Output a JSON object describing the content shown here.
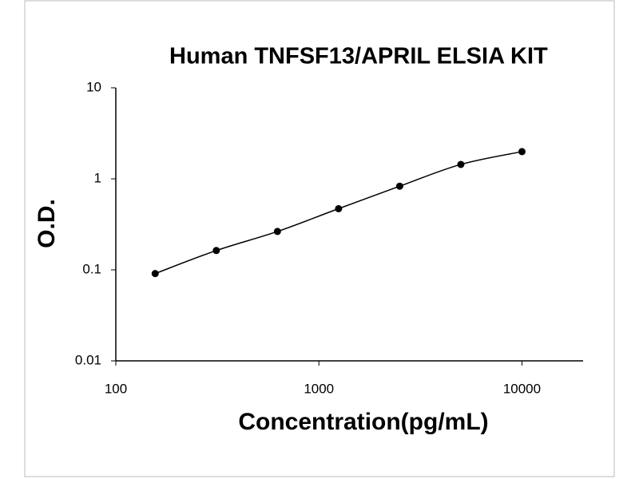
{
  "chart_data": {
    "type": "scatter",
    "title": "Human TNFSF13/APRIL ELSIA KIT",
    "x_label": "Concentration(pg/mL)",
    "y_label": "O.D.",
    "x": [
      156.25,
      312.5,
      625,
      1250,
      2500,
      5000,
      10000
    ],
    "series": [
      {
        "name": "O.D.",
        "color": "#000000",
        "values": [
          0.091,
          0.163,
          0.264,
          0.47,
          0.83,
          1.44,
          1.99
        ]
      }
    ],
    "xscale": "log",
    "yscale": "log",
    "xlim": [
      100,
      20000
    ],
    "xticks": [
      100,
      1000,
      10000
    ],
    "ylim": [
      0.01,
      10
    ],
    "yticks": [
      0.01,
      0.1,
      1,
      10
    ],
    "line": true,
    "grid": false
  }
}
